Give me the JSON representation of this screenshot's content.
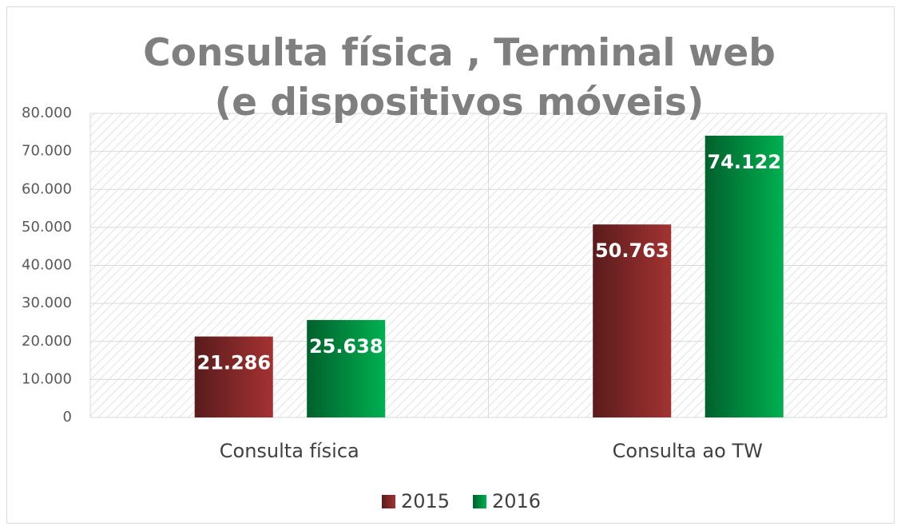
{
  "chart_data": {
    "type": "bar",
    "title": "Consulta física , Terminal web (e dispositivos móveis)",
    "categories": [
      "Consulta física",
      "Consulta ao TW"
    ],
    "series": [
      {
        "name": "2015",
        "color": "#a33232",
        "values": [
          21286,
          50763
        ],
        "value_labels": [
          "21.286",
          "50.763"
        ]
      },
      {
        "name": "2016",
        "color": "#00b050",
        "values": [
          25638,
          74122
        ],
        "value_labels": [
          "25.638",
          "74.122"
        ]
      }
    ],
    "ylim": [
      0,
      80000
    ],
    "yticks": [
      0,
      {
        "value": 10000,
        "label": "10.000"
      },
      {
        "value": 20000,
        "label": "20.000"
      },
      {
        "value": 30000,
        "label": "30.000"
      },
      {
        "value": 40000,
        "label": "40.000"
      },
      {
        "value": 50000,
        "label": "50.000"
      },
      {
        "value": 60000,
        "label": "60.000"
      },
      {
        "value": 70000,
        "label": "70.000"
      },
      {
        "value": 80000,
        "label": "80.000"
      }
    ],
    "grid": true,
    "legend": "bottom"
  }
}
